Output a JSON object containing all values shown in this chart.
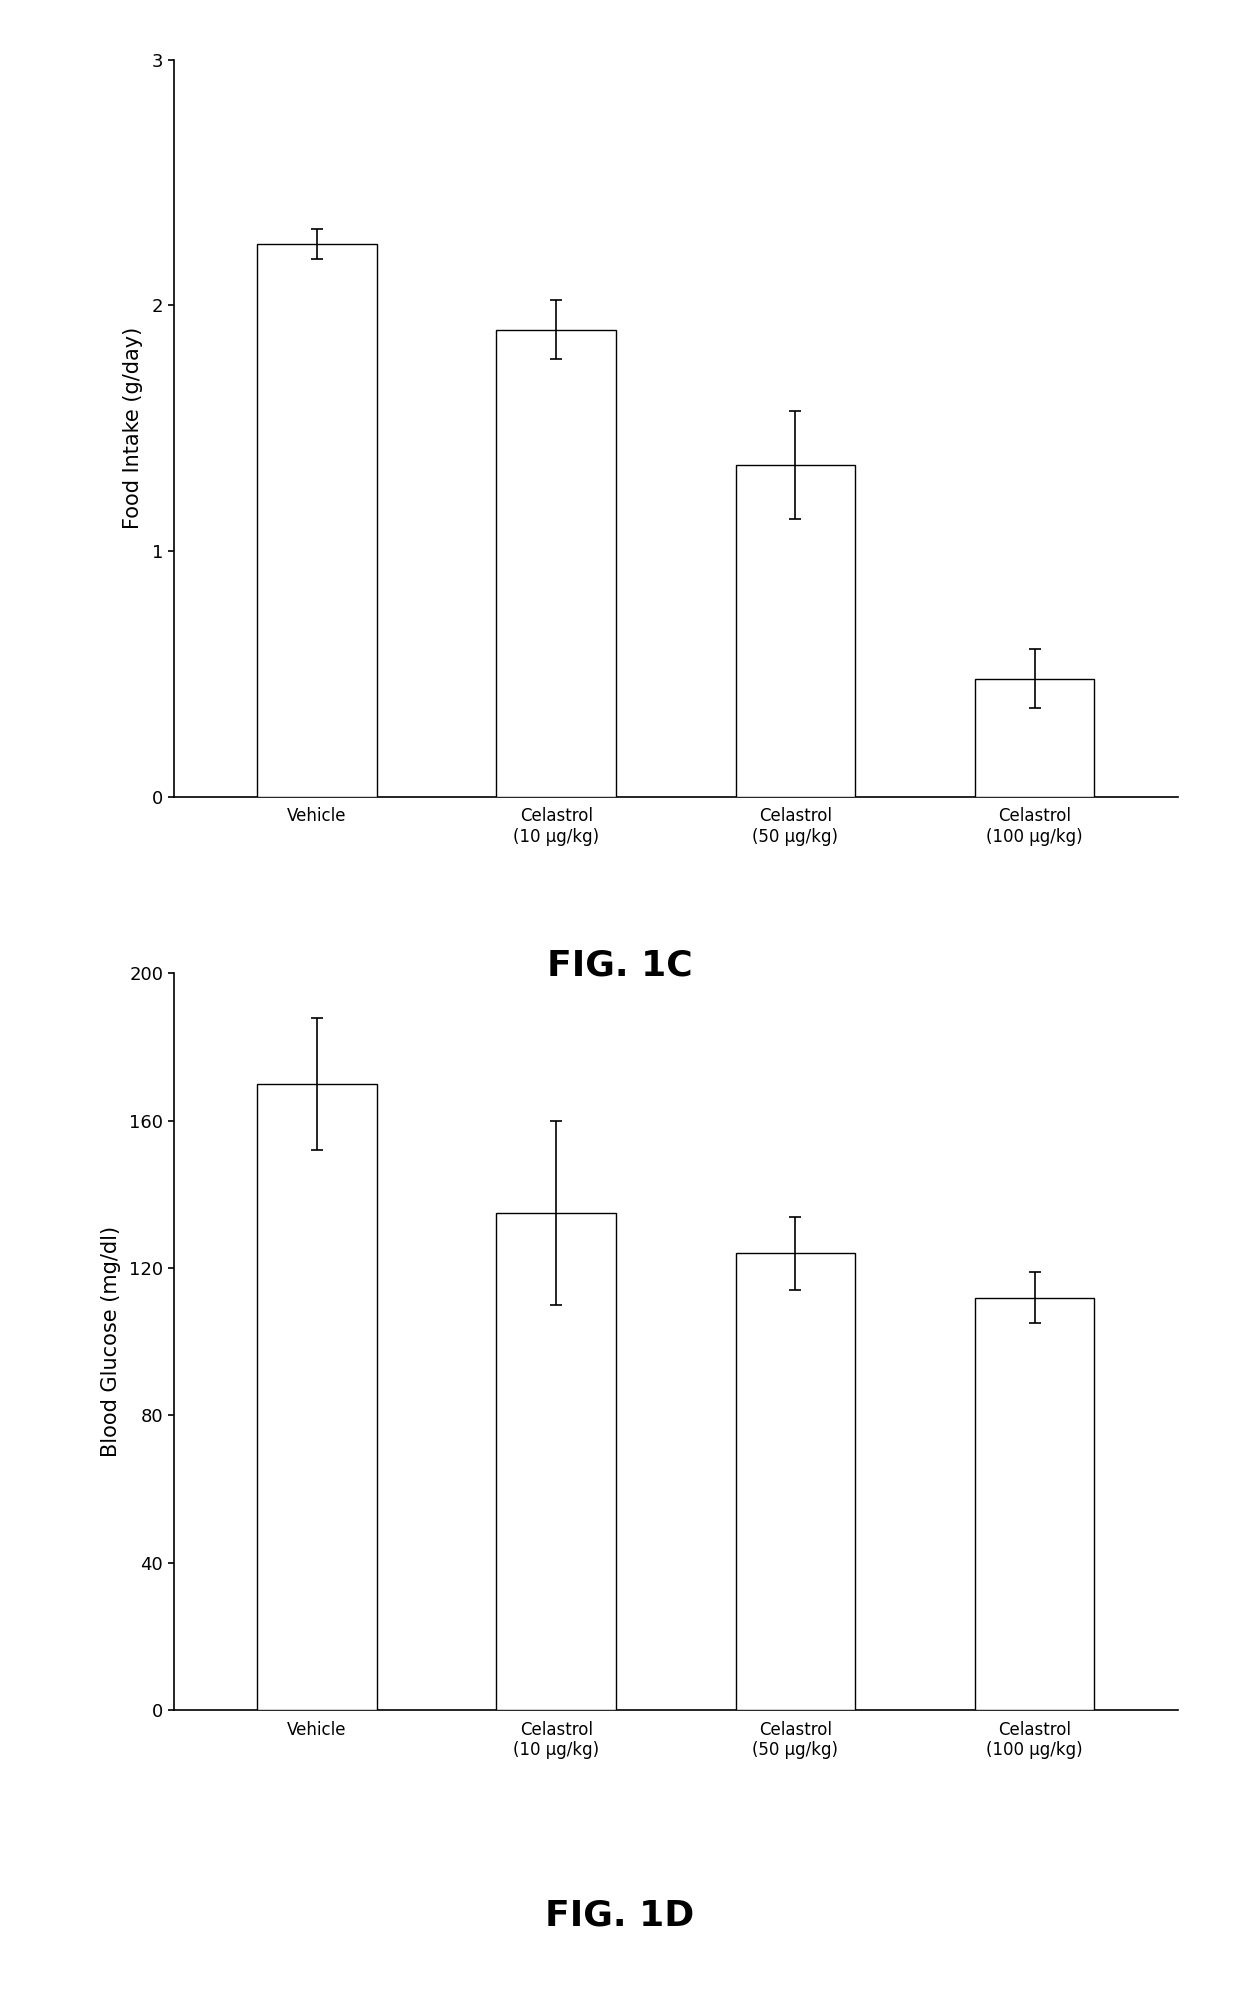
{
  "fig1c": {
    "title": "FIG. 1C",
    "ylabel": "Food Intake (g/day)",
    "categories": [
      "Vehicle",
      "Celastrol\n(10 μg/kg)",
      "Celastrol\n(50 μg/kg)",
      "Celastrol\n(100 μg/kg)"
    ],
    "values": [
      2.25,
      1.9,
      1.35,
      0.48
    ],
    "errors": [
      0.06,
      0.12,
      0.22,
      0.12
    ],
    "ylim": [
      0,
      3
    ],
    "yticks": [
      0,
      1,
      2,
      3
    ],
    "bar_color": "white",
    "bar_edgecolor": "black",
    "bar_width": 0.5
  },
  "fig1d": {
    "title": "FIG. 1D",
    "ylabel": "Blood Glucose (mg/dl)",
    "categories": [
      "Vehicle",
      "Celastrol\n(10 μg/kg)",
      "Celastrol\n(50 μg/kg)",
      "Celastrol\n(100 μg/kg)"
    ],
    "values": [
      170,
      135,
      124,
      112
    ],
    "errors": [
      18,
      25,
      10,
      7
    ],
    "ylim": [
      0,
      200
    ],
    "yticks": [
      0,
      40,
      80,
      120,
      160,
      200
    ],
    "bar_color": "white",
    "bar_edgecolor": "black",
    "bar_width": 0.5
  },
  "background_color": "white",
  "fontsize_axis_label": 15,
  "fontsize_tick": 13,
  "fontsize_title": 26,
  "fontsize_xticklabel": 12
}
